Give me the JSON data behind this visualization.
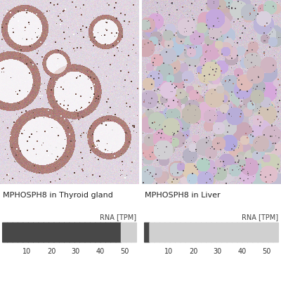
{
  "title_left": "MPHOSPH8 in Thyroid gland",
  "title_right": "MPHOSPH8 in Liver",
  "rna_label": "RNA [TPM]",
  "tick_values": [
    10,
    20,
    30,
    40,
    50
  ],
  "n_bars": 26,
  "thyroid_tpm": 50,
  "liver_tpm": 4,
  "bar_dark_color": "#484848",
  "bar_light_color": "#d0d0d0",
  "bg_color": "#ffffff",
  "title_fontsize": 8.0,
  "tick_fontsize": 7.0,
  "rna_fontsize": 7.0,
  "max_tpm": 55
}
